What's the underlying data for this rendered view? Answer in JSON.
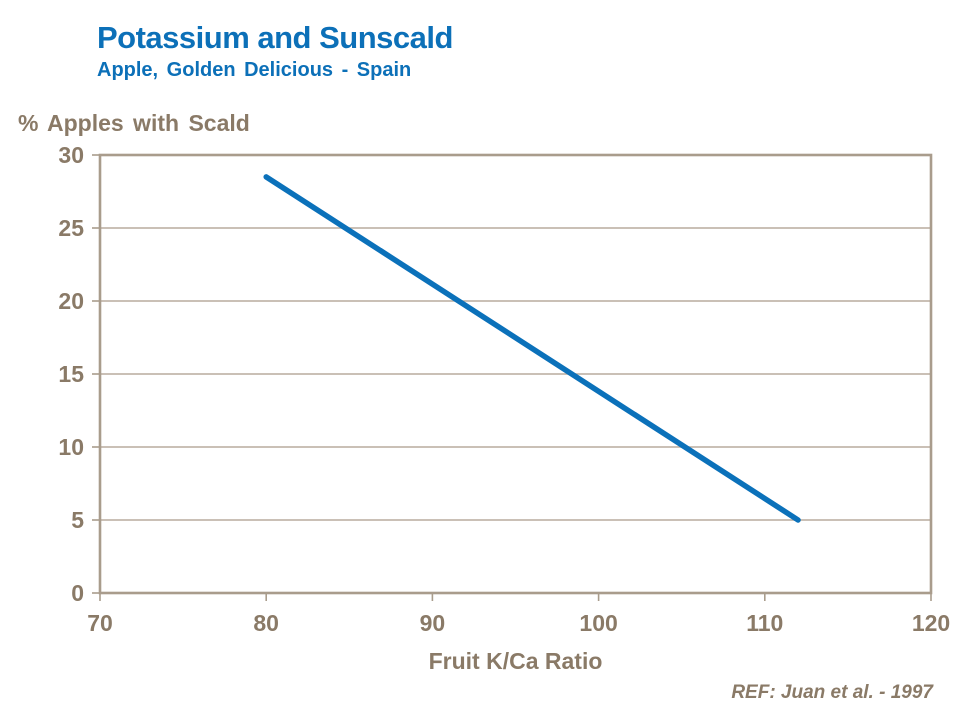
{
  "reference": "REF: Juan et al. - 1997",
  "colors": {
    "title_blue": "#0c70b8",
    "line_blue": "#0b71ba",
    "axis_text": "#8a7a67",
    "axis_frame": "#a99c8c",
    "gridline": "#b8ac9e"
  },
  "chart_data": {
    "type": "line",
    "title": "Potassium and Sunscald",
    "subtitle": "Apple, Golden Delicious - Spain",
    "xlabel": "Fruit K/Ca Ratio",
    "ylabel": "% Apples with Scald",
    "xlim": [
      70,
      120
    ],
    "ylim": [
      0,
      30
    ],
    "xticks": [
      70,
      80,
      90,
      100,
      110,
      120
    ],
    "yticks": [
      0,
      5,
      10,
      15,
      20,
      25,
      30
    ],
    "grid": "horizontal",
    "legend": "none",
    "series": [
      {
        "name": "Apples with Scald",
        "x": [
          80,
          112
        ],
        "y": [
          28.5,
          5
        ]
      }
    ],
    "annotation": "REF: Juan et al. - 1997"
  }
}
